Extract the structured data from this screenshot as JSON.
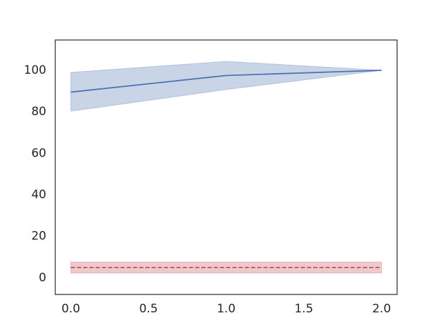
{
  "chart_data": {
    "type": "line",
    "x": [
      0,
      1,
      2
    ],
    "series": [
      {
        "color": "#4c72b0",
        "linestyle": "solid",
        "band_color": "#4c72b0",
        "values": [
          89.5,
          97.5,
          100
        ],
        "lower": [
          80.3,
          90.7,
          100
        ],
        "upper": [
          99,
          104.3,
          100
        ]
      },
      {
        "color": "#c44e52",
        "linestyle": "dashed",
        "band_color": "#c44e52",
        "values": [
          5,
          5,
          5
        ],
        "lower": [
          2.3,
          2.3,
          2.3
        ],
        "upper": [
          7.6,
          7.6,
          7.6
        ]
      }
    ],
    "xlim": [
      -0.1,
      2.1
    ],
    "ylim": [
      -8,
      114.6
    ],
    "xticks": [
      {
        "value": 0,
        "label": "0.0"
      },
      {
        "value": 0.5,
        "label": "0.5"
      },
      {
        "value": 1,
        "label": "1.0"
      },
      {
        "value": 1.5,
        "label": "1.5"
      },
      {
        "value": 2,
        "label": "2.0"
      }
    ],
    "yticks": [
      0,
      20,
      40,
      60,
      80,
      100
    ],
    "grid": false
  }
}
